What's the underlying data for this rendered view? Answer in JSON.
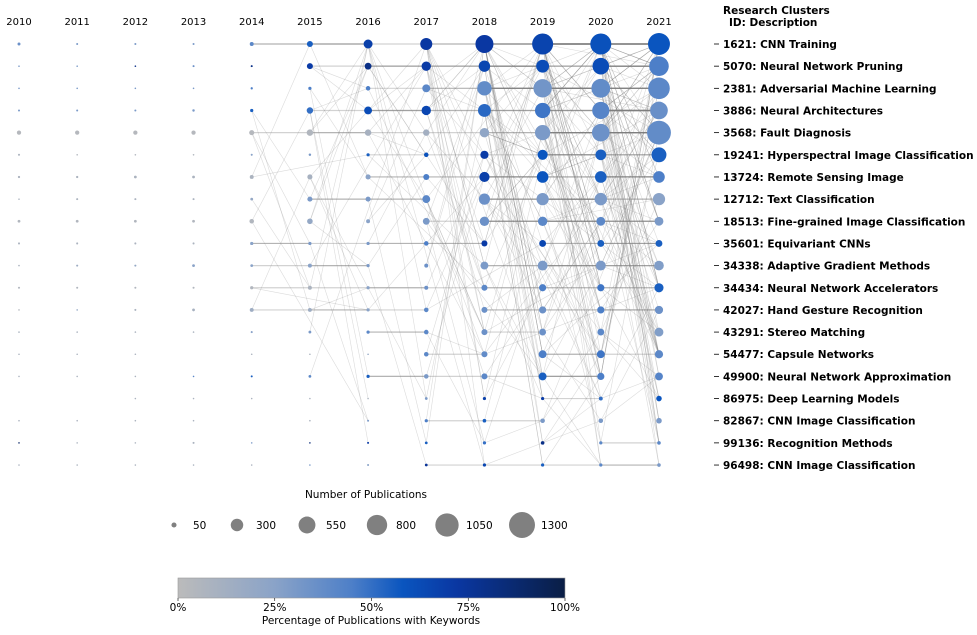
{
  "chart_data": {
    "type": "bubble-flow",
    "years": [
      2010,
      2011,
      2012,
      2013,
      2014,
      2015,
      2016,
      2017,
      2018,
      2019,
      2020,
      2021
    ],
    "clusters_header": "Research Clusters",
    "clusters_subheader": "ID: Description",
    "clusters": [
      {
        "label": "1621: CNN Training",
        "counts": [
          17,
          8,
          8,
          8,
          30,
          70,
          155,
          280,
          625,
          850,
          850,
          930
        ],
        "pct": [
          35,
          30,
          30,
          30,
          40,
          55,
          68,
          72,
          72,
          66,
          60,
          58
        ]
      },
      {
        "label": "5070: Neural Network Pruning",
        "counts": [
          3,
          3,
          5,
          8,
          8,
          70,
          90,
          170,
          250,
          320,
          530,
          740
        ],
        "pct": [
          30,
          30,
          80,
          35,
          80,
          70,
          80,
          70,
          65,
          62,
          62,
          45
        ]
      },
      {
        "label": "2381: Adversarial Machine Learning",
        "counts": [
          2,
          2,
          3,
          3,
          10,
          20,
          40,
          120,
          400,
          650,
          680,
          900
        ],
        "pct": [
          30,
          30,
          30,
          30,
          45,
          45,
          45,
          40,
          38,
          33,
          38,
          40
        ]
      },
      {
        "label": "3886: Neural Architectures",
        "counts": [
          8,
          8,
          8,
          12,
          20,
          80,
          120,
          170,
          320,
          450,
          570,
          600
        ],
        "pct": [
          30,
          30,
          30,
          30,
          55,
          50,
          62,
          65,
          52,
          48,
          42,
          36
        ]
      },
      {
        "label": "3568: Fault Diagnosis",
        "counts": [
          35,
          35,
          35,
          35,
          50,
          80,
          80,
          80,
          170,
          450,
          600,
          1100
        ],
        "pct": [
          3,
          3,
          3,
          3,
          3,
          5,
          10,
          12,
          22,
          30,
          35,
          38
        ]
      },
      {
        "label": "19241: Hyperspectral Image Classification",
        "counts": [
          8,
          3,
          3,
          5,
          8,
          12,
          20,
          40,
          130,
          200,
          220,
          430
        ],
        "pct": [
          8,
          5,
          5,
          5,
          25,
          30,
          55,
          60,
          70,
          58,
          55,
          55
        ]
      },
      {
        "label": "13724: Remote Sensing Image",
        "counts": [
          10,
          10,
          15,
          15,
          30,
          50,
          50,
          70,
          200,
          260,
          260,
          260
        ],
        "pct": [
          8,
          8,
          8,
          8,
          8,
          10,
          25,
          45,
          68,
          58,
          55,
          45
        ]
      },
      {
        "label": "12712: Text Classification",
        "counts": [
          3,
          8,
          8,
          8,
          15,
          50,
          50,
          120,
          240,
          290,
          300,
          290
        ],
        "pct": [
          8,
          8,
          8,
          8,
          20,
          30,
          30,
          40,
          35,
          30,
          30,
          25
        ]
      },
      {
        "label": "18513: Fine-grained Image Classification",
        "counts": [
          15,
          15,
          15,
          15,
          40,
          60,
          30,
          90,
          170,
          170,
          150,
          150
        ],
        "pct": [
          5,
          5,
          5,
          5,
          5,
          20,
          25,
          30,
          35,
          40,
          40,
          30
        ]
      },
      {
        "label": "35601: Equivariant CNNs",
        "counts": [
          8,
          8,
          8,
          8,
          20,
          20,
          20,
          40,
          70,
          90,
          90,
          90
        ],
        "pct": [
          8,
          8,
          8,
          8,
          25,
          30,
          30,
          45,
          70,
          65,
          55,
          55
        ]
      },
      {
        "label": "34338: Adaptive Gradient Methods",
        "counts": [
          5,
          8,
          8,
          15,
          15,
          30,
          20,
          30,
          120,
          190,
          190,
          180
        ],
        "pct": [
          8,
          15,
          20,
          25,
          25,
          25,
          30,
          35,
          30,
          30,
          30,
          28
        ]
      },
      {
        "label": "34434: Neural Network Accelerators",
        "counts": [
          8,
          8,
          8,
          8,
          20,
          30,
          20,
          30,
          70,
          100,
          100,
          160
        ],
        "pct": [
          5,
          5,
          5,
          5,
          5,
          8,
          25,
          35,
          40,
          45,
          48,
          55
        ]
      },
      {
        "label": "42027: Hand Gesture Recognition",
        "counts": [
          3,
          5,
          8,
          15,
          30,
          30,
          20,
          40,
          70,
          100,
          100,
          130
        ],
        "pct": [
          5,
          20,
          8,
          10,
          15,
          15,
          25,
          40,
          35,
          35,
          45,
          35
        ]
      },
      {
        "label": "43291: Stereo Matching",
        "counts": [
          3,
          3,
          3,
          3,
          8,
          15,
          20,
          40,
          70,
          90,
          90,
          150
        ],
        "pct": [
          8,
          8,
          8,
          8,
          25,
          30,
          40,
          40,
          35,
          35,
          40,
          28
        ]
      },
      {
        "label": "54477: Capsule Networks",
        "counts": [
          3,
          3,
          3,
          0,
          3,
          3,
          3,
          40,
          70,
          120,
          120,
          130
        ],
        "pct": [
          8,
          8,
          8,
          0,
          8,
          8,
          20,
          40,
          38,
          45,
          48,
          40
        ]
      },
      {
        "label": "49900: Neural Network Approximation",
        "counts": [
          3,
          3,
          3,
          5,
          8,
          15,
          20,
          40,
          70,
          120,
          100,
          120
        ],
        "pct": [
          8,
          8,
          8,
          40,
          55,
          40,
          55,
          30,
          40,
          55,
          45,
          42
        ]
      },
      {
        "label": "86975: Deep Learning Models",
        "counts": [
          0,
          0,
          2,
          2,
          3,
          3,
          3,
          15,
          20,
          20,
          30,
          60
        ],
        "pct": [
          0,
          0,
          8,
          8,
          8,
          8,
          8,
          30,
          68,
          70,
          50,
          58
        ]
      },
      {
        "label": "82867: CNN Image Classification",
        "counts": [
          2,
          3,
          3,
          3,
          0,
          5,
          8,
          20,
          25,
          40,
          40,
          60
        ],
        "pct": [
          8,
          8,
          8,
          8,
          0,
          8,
          30,
          45,
          55,
          30,
          30,
          30
        ]
      },
      {
        "label": "99136: Recognition Methods",
        "counts": [
          3,
          3,
          3,
          8,
          5,
          5,
          8,
          15,
          20,
          25,
          20,
          25
        ],
        "pct": [
          90,
          8,
          8,
          8,
          30,
          85,
          70,
          55,
          50,
          80,
          40,
          40
        ]
      },
      {
        "label": "96498: CNN Image Classification",
        "counts": [
          3,
          3,
          3,
          2,
          3,
          5,
          8,
          15,
          20,
          20,
          20,
          25
        ],
        "pct": [
          8,
          8,
          8,
          8,
          8,
          30,
          25,
          75,
          65,
          55,
          40,
          30
        ]
      }
    ],
    "size_legend": {
      "title": "Number of Publications",
      "values": [
        50,
        300,
        550,
        800,
        1050,
        1300
      ],
      "labels": [
        "50",
        "300",
        "550",
        "800",
        "1050",
        "1300"
      ],
      "color": "#808080"
    },
    "color_legend": {
      "title": "Percentage of Publications with Keywords",
      "ticks": [
        "0%",
        "25%",
        "50%",
        "75%",
        "100%"
      ],
      "range": [
        0,
        100
      ],
      "stops": [
        {
          "at": 0,
          "color": "#bbbbbb"
        },
        {
          "at": 25,
          "color": "#8aa3c8"
        },
        {
          "at": 45,
          "color": "#4d7fc8"
        },
        {
          "at": 58,
          "color": "#0a55bf"
        },
        {
          "at": 72,
          "color": "#0a37a2"
        },
        {
          "at": 100,
          "color": "#0a1e45"
        }
      ]
    },
    "link_color": "#7f7f7f"
  }
}
